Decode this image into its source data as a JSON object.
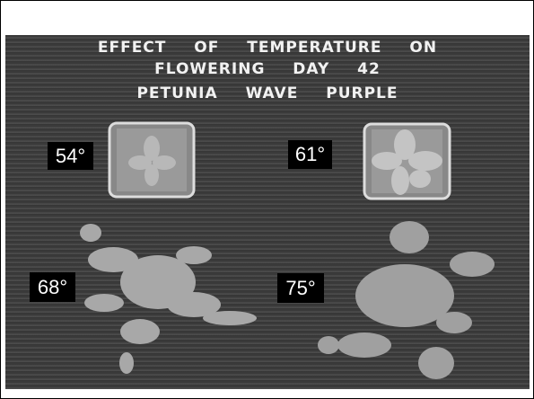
{
  "caption": {
    "lines": [
      "EFFECT OF TEMPERATURE ON",
      "FLOWERING DAY 42",
      "PETUNIA WAVE PURPLE"
    ]
  },
  "labels": [
    "54°",
    "61°",
    "68°",
    "75°"
  ]
}
